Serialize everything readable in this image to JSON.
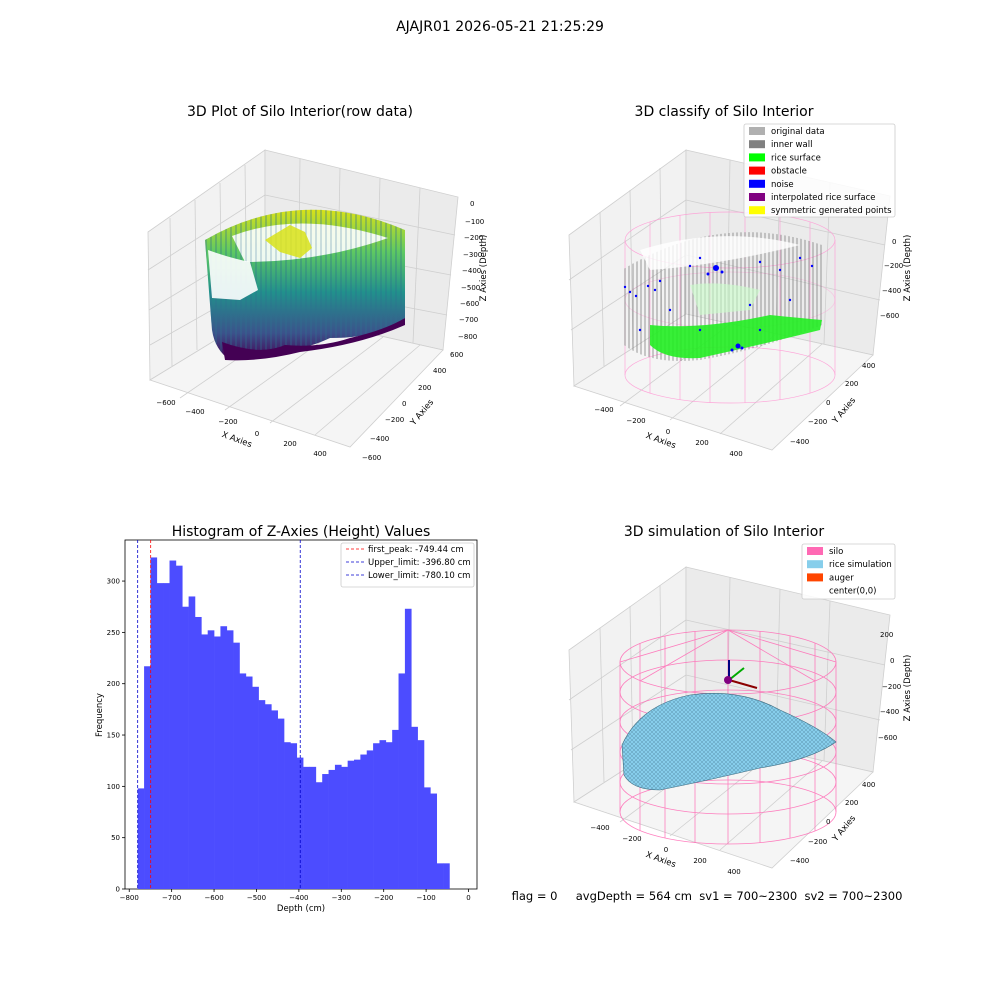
{
  "figure": {
    "suptitle": "AJAJR01 2026-05-21 21:25:29",
    "footer": "flag = 0     avgDepth = 564 cm  sv1 = 700~2300  sv2 = 700~2300"
  },
  "panels": {
    "raw": {
      "title": "3D Plot of Silo Interior(row data)",
      "xlabel": "X Axies",
      "ylabel": "Y Axies",
      "zlabel": "Z Axies (Depth)",
      "x_ticks": [
        "−600",
        "−400",
        "−200",
        "0",
        "200",
        "400"
      ],
      "y_ticks": [
        "−600",
        "−400",
        "−200",
        "0",
        "200",
        "400",
        "600"
      ],
      "z_ticks": [
        "0",
        "−100",
        "−200",
        "−300",
        "−400",
        "−500",
        "−600",
        "−700",
        "−800"
      ]
    },
    "classify": {
      "title": "3D classify of Silo Interior",
      "xlabel": "X Axies",
      "ylabel": "Y Axies",
      "zlabel": "Z Axies (Depth)",
      "x_ticks": [
        "−400",
        "−200",
        "0",
        "200",
        "400"
      ],
      "y_ticks": [
        "−400",
        "−200",
        "0",
        "200",
        "400"
      ],
      "z_ticks": [
        "0",
        "−200",
        "−400",
        "−600"
      ],
      "legend": [
        {
          "label": "original data",
          "color": "#b0b0b0"
        },
        {
          "label": "inner wall",
          "color": "#808080"
        },
        {
          "label": "rice surface",
          "color": "#00ff00"
        },
        {
          "label": "obstacle",
          "color": "#ff0000"
        },
        {
          "label": "noise",
          "color": "#0000ff"
        },
        {
          "label": "interpolated rice surface",
          "color": "#800080"
        },
        {
          "label": "symmetric generated points",
          "color": "#ffff00"
        }
      ]
    },
    "simulation": {
      "title": "3D simulation of Silo Interior",
      "xlabel": "X Axies",
      "ylabel": "Y Axies",
      "zlabel": "Z Axies (Depth)",
      "x_ticks": [
        "−400",
        "−200",
        "0",
        "200",
        "400"
      ],
      "y_ticks": [
        "−400",
        "−200",
        "0",
        "200",
        "400"
      ],
      "z_ticks": [
        "200",
        "0",
        "−200",
        "−400",
        "−600"
      ],
      "legend": [
        {
          "label": "silo",
          "color": "#ff69b4"
        },
        {
          "label": "rice simulation",
          "color": "#87ceeb"
        },
        {
          "label": "auger",
          "color": "#ff4500"
        },
        {
          "label": "center(0,0)",
          "color": "#ffffff"
        }
      ]
    }
  },
  "chart_data": {
    "type": "bar",
    "title": "Histogram of Z-Axies (Height) Values",
    "xlabel": "Depth (cm)",
    "ylabel": "Frequency",
    "xlim": [
      -810,
      20
    ],
    "ylim": [
      0,
      340
    ],
    "x_ticks": [
      -800,
      -700,
      -600,
      -500,
      -400,
      -300,
      -200,
      -100,
      0
    ],
    "x_tick_labels": [
      "−800",
      "−700",
      "−600",
      "−500",
      "−400",
      "−300",
      "−200",
      "−100",
      "0"
    ],
    "y_ticks": [
      0,
      50,
      100,
      150,
      200,
      250,
      300
    ],
    "bar_color": "#4c4cff",
    "bin_start": -780,
    "bin_width": 15,
    "values": [
      98,
      217,
      323,
      298,
      298,
      320,
      315,
      275,
      285,
      265,
      248,
      252,
      246,
      256,
      252,
      240,
      210,
      207,
      197,
      184,
      180,
      174,
      166,
      143,
      142,
      128,
      119,
      119,
      104,
      112,
      116,
      121,
      119,
      125,
      126,
      131,
      135,
      142,
      145,
      143,
      155,
      210,
      273,
      158,
      145,
      99,
      93,
      25,
      25
    ],
    "reference_lines": [
      {
        "label": "first_peak: -749.44 cm",
        "value": -749.44,
        "color": "#ff0000"
      },
      {
        "label": "Upper_limit: -396.80 cm",
        "value": -396.8,
        "color": "#0000cc"
      },
      {
        "label": "Lower_limit: -780.10 cm",
        "value": -780.1,
        "color": "#0000cc"
      }
    ],
    "legend_position": "top-right"
  }
}
